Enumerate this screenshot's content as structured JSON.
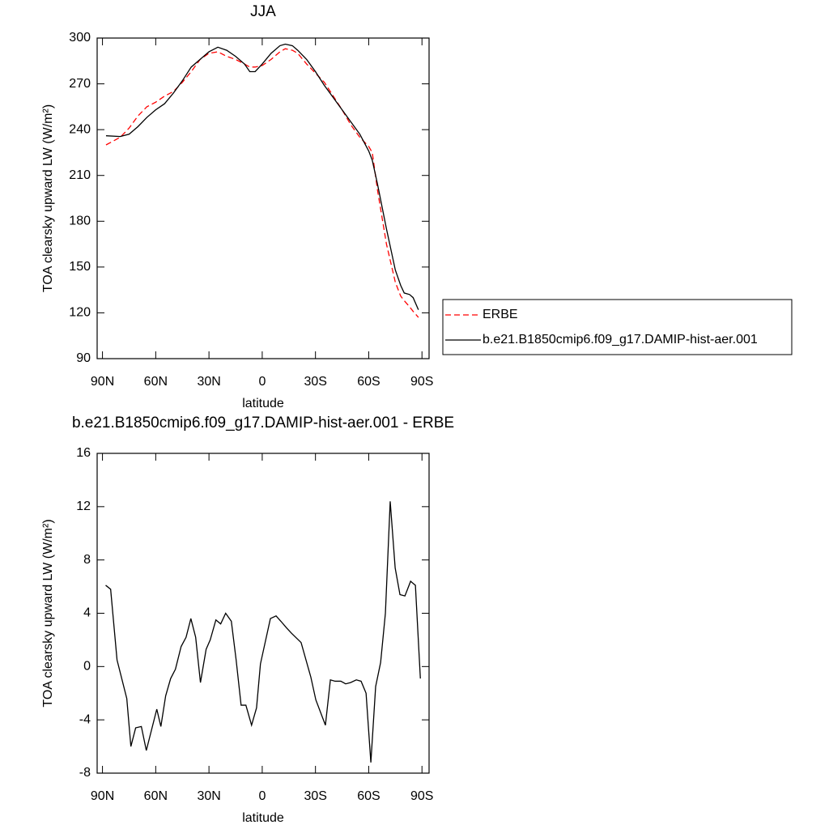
{
  "chart_data": [
    {
      "type": "line",
      "title": "JJA",
      "x_label": "latitude",
      "y_label": "TOA clearsky upward LW (W/m²)",
      "x": [
        88,
        80,
        75,
        70,
        65,
        60,
        55,
        50,
        45,
        40,
        35,
        30,
        25,
        20,
        15,
        10,
        7,
        4,
        0,
        -5,
        -10,
        -13,
        -17,
        -20,
        -25,
        -30,
        -35,
        -40,
        -45,
        -50,
        -55,
        -60,
        -62,
        -65,
        -70,
        -75,
        -78,
        -80,
        -83,
        -85,
        -88
      ],
      "series": [
        {
          "name": "ERBE",
          "color": "#ff0000",
          "dash": "dashed",
          "values": [
            230,
            235,
            241,
            249,
            255,
            258,
            262,
            265,
            271,
            278,
            286,
            290,
            291,
            288,
            286,
            283,
            281,
            281,
            282,
            286,
            291,
            293,
            292,
            290,
            283,
            277,
            271,
            262,
            253,
            243,
            235,
            229,
            225,
            200,
            165,
            140,
            131,
            128,
            124,
            121,
            117
          ]
        },
        {
          "name": "b.e21.B1850cmip6.f09_g17.DAMIP-hist-aer.001",
          "color": "#000000",
          "dash": "solid",
          "values": [
            236,
            235.5,
            237,
            242,
            248,
            253,
            257,
            264,
            272,
            281,
            286,
            291,
            294,
            292,
            288,
            283,
            278,
            278,
            283,
            290,
            295,
            296,
            295,
            292,
            286,
            278,
            269,
            261,
            253,
            245,
            237,
            226,
            220,
            204,
            175,
            148,
            138,
            133,
            132,
            130,
            122
          ]
        }
      ],
      "xlim": [
        93,
        -94
      ],
      "xticks": [
        {
          "value": 90,
          "label": "90N"
        },
        {
          "value": 60,
          "label": "60N"
        },
        {
          "value": 30,
          "label": "30N"
        },
        0,
        {
          "value": -30,
          "label": "30S"
        },
        {
          "value": -60,
          "label": "60S"
        },
        {
          "value": -90,
          "label": "90S"
        }
      ],
      "ylim": [
        90,
        300
      ],
      "yticks": [
        90,
        120,
        150,
        180,
        210,
        240,
        270,
        300
      ],
      "legend": "right"
    },
    {
      "type": "line",
      "title": "b.e21.B1850cmip6.f09_g17.DAMIP-hist-aer.001 - ERBE",
      "x_label": "latitude",
      "y_label": "TOA clearsky upward LW (W/m²)",
      "x": [
        88.2,
        85.4,
        81.8,
        76.3,
        74.0,
        71.3,
        68.1,
        65.3,
        59.4,
        57.1,
        54.4,
        51.6,
        48.9,
        45.7,
        42.9,
        40.2,
        37.5,
        34.8,
        31.6,
        29.3,
        26.1,
        23.4,
        20.6,
        17.4,
        14.7,
        11.9,
        9.2,
        6.0,
        3.2,
        1.0,
        -4.6,
        -7.8,
        -10.5,
        -13.7,
        -16.5,
        -21.9,
        -27.4,
        -30.2,
        -35.6,
        -38.4,
        -41.1,
        -44.3,
        -47.0,
        -49.8,
        -53.0,
        -55.7,
        -58.5,
        -61.2,
        -63.9,
        -66.7,
        -69.4,
        -72.1,
        -74.9,
        -77.6,
        -80.4,
        -83.6,
        -86.3,
        -89.1
      ],
      "series": [
        {
          "color": "#000000",
          "dash": "solid",
          "values": [
            6.1,
            5.8,
            0.5,
            -2.4,
            -6,
            -4.6,
            -4.5,
            -6.3,
            -3.2,
            -4.5,
            -2.2,
            -0.9,
            -0.2,
            1.5,
            2.2,
            3.6,
            2.2,
            -1.2,
            1.3,
            2,
            3.5,
            3.2,
            4,
            3.4,
            0.5,
            -2.9,
            -2.9,
            -4.4,
            -3.1,
            0.2,
            3.6,
            3.8,
            3.4,
            2.9,
            2.5,
            1.8,
            -0.8,
            -2.5,
            -4.4,
            -1,
            -1.1,
            -1.1,
            -1.3,
            -1.2,
            -1,
            -1.1,
            -2,
            -7.2,
            -1.5,
            0.3,
            4,
            12.4,
            7.4,
            5.4,
            5.3,
            6.4,
            6.1,
            -0.9
          ]
        }
      ],
      "xlim": [
        93,
        -94
      ],
      "xticks": [
        {
          "value": 90,
          "label": "90N"
        },
        {
          "value": 60,
          "label": "60N"
        },
        {
          "value": 30,
          "label": "30N"
        },
        0,
        {
          "value": -30,
          "label": "30S"
        },
        {
          "value": -60,
          "label": "60S"
        },
        {
          "value": -90,
          "label": "90S"
        }
      ],
      "ylim": [
        -8,
        16
      ],
      "yticks": [
        -8,
        -4,
        0,
        4,
        8,
        12,
        16
      ]
    }
  ]
}
